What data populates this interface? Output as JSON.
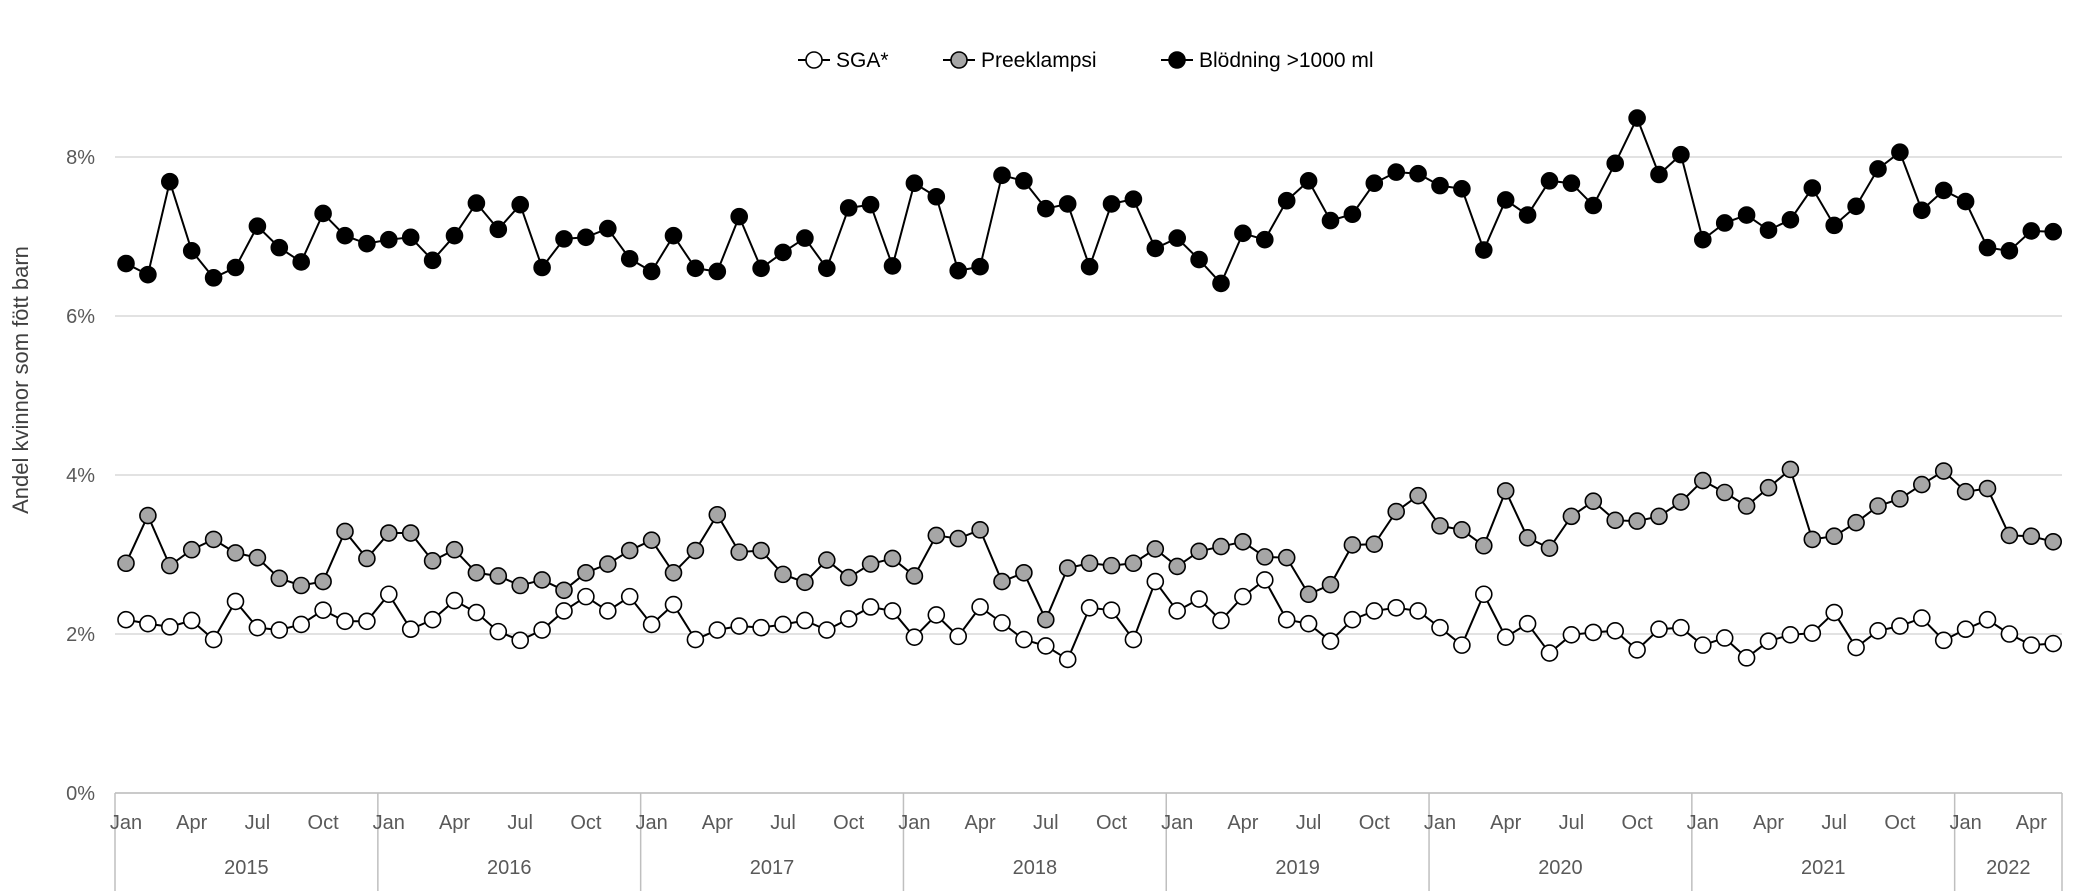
{
  "chart_data": {
    "type": "line",
    "title": "",
    "ylabel": "Andel kvinnor som fött barn",
    "xlabel": "",
    "ylim": [
      0,
      9
    ],
    "y_ticks": [
      "0%",
      "2%",
      "4%",
      "6%",
      "8%"
    ],
    "y_tick_values": [
      0,
      2,
      4,
      6,
      8
    ],
    "grid": true,
    "legend_position": "top-center",
    "x_month_labels": [
      "Jan",
      "Apr",
      "Jul",
      "Oct"
    ],
    "years": [
      "2015",
      "2016",
      "2017",
      "2018",
      "2019",
      "2020",
      "2021",
      "2022"
    ],
    "start_month": "2015-01",
    "point_count": 89,
    "series": [
      {
        "name": "SGA*",
        "fill": "#ffffff",
        "values": [
          2.18,
          2.13,
          2.09,
          2.17,
          1.93,
          2.41,
          2.08,
          2.05,
          2.12,
          2.3,
          2.16,
          2.16,
          2.5,
          2.06,
          2.18,
          2.42,
          2.27,
          2.03,
          1.92,
          2.05,
          2.29,
          2.47,
          2.29,
          2.47,
          2.12,
          2.37,
          1.93,
          2.05,
          2.1,
          2.08,
          2.12,
          2.17,
          2.05,
          2.19,
          2.34,
          2.29,
          1.96,
          2.24,
          1.97,
          2.34,
          2.14,
          1.93,
          1.85,
          1.68,
          2.33,
          2.3,
          1.93,
          2.66,
          2.29,
          2.44,
          2.17,
          2.47,
          2.68,
          2.18,
          2.13,
          1.91,
          2.18,
          2.29,
          2.33,
          2.29,
          2.08,
          1.86,
          2.5,
          1.96,
          2.13,
          1.76,
          1.99,
          2.02,
          2.04,
          1.8,
          2.06,
          2.08,
          1.86,
          1.95,
          1.7,
          1.91,
          1.99,
          2.01,
          2.27,
          1.83,
          2.04,
          2.1,
          2.2,
          1.92,
          2.06,
          2.18,
          2.0,
          1.86,
          1.88
        ]
      },
      {
        "name": "Preeklampsi",
        "fill": "#a6a6a6",
        "values": [
          2.89,
          3.49,
          2.86,
          3.06,
          3.19,
          3.02,
          2.96,
          2.7,
          2.61,
          2.66,
          3.29,
          2.95,
          3.27,
          3.27,
          2.92,
          3.06,
          2.77,
          2.73,
          2.61,
          2.68,
          2.55,
          2.77,
          2.88,
          3.05,
          3.18,
          2.77,
          3.05,
          3.5,
          3.03,
          3.05,
          2.75,
          2.65,
          2.93,
          2.71,
          2.88,
          2.95,
          2.73,
          3.24,
          3.2,
          3.31,
          2.66,
          2.77,
          2.18,
          2.83,
          2.89,
          2.86,
          2.89,
          3.07,
          2.85,
          3.04,
          3.1,
          3.16,
          2.97,
          2.96,
          2.5,
          2.62,
          3.12,
          3.13,
          3.54,
          3.74,
          3.36,
          3.31,
          3.11,
          3.8,
          3.21,
          3.08,
          3.48,
          3.67,
          3.43,
          3.42,
          3.48,
          3.66,
          3.93,
          3.78,
          3.61,
          3.84,
          4.07,
          3.19,
          3.23,
          3.4,
          3.61,
          3.7,
          3.88,
          4.05,
          3.79,
          3.83,
          3.24,
          3.23,
          3.16
        ]
      },
      {
        "name": "Blödning >1000 ml",
        "fill": "#000000",
        "values": [
          6.66,
          6.52,
          7.69,
          6.82,
          6.48,
          6.61,
          7.13,
          6.86,
          6.68,
          7.29,
          7.01,
          6.91,
          6.96,
          6.99,
          6.7,
          7.01,
          7.42,
          7.09,
          7.4,
          6.61,
          6.97,
          6.99,
          7.1,
          6.72,
          6.56,
          7.01,
          6.6,
          6.56,
          7.25,
          6.6,
          6.8,
          6.98,
          6.6,
          7.36,
          7.4,
          6.63,
          7.67,
          7.5,
          6.57,
          6.62,
          7.77,
          7.7,
          7.35,
          7.41,
          6.62,
          7.41,
          7.47,
          6.85,
          6.98,
          6.71,
          6.41,
          7.04,
          6.96,
          7.45,
          7.7,
          7.2,
          7.28,
          7.67,
          7.81,
          7.79,
          7.64,
          7.6,
          6.83,
          7.46,
          7.27,
          7.7,
          7.67,
          7.39,
          7.92,
          8.49,
          7.78,
          8.03,
          6.96,
          7.17,
          7.27,
          7.08,
          7.21,
          7.61,
          7.14,
          7.38,
          7.85,
          8.06,
          7.33,
          7.58,
          7.44,
          6.86,
          6.82,
          7.07,
          7.06
        ]
      }
    ]
  }
}
